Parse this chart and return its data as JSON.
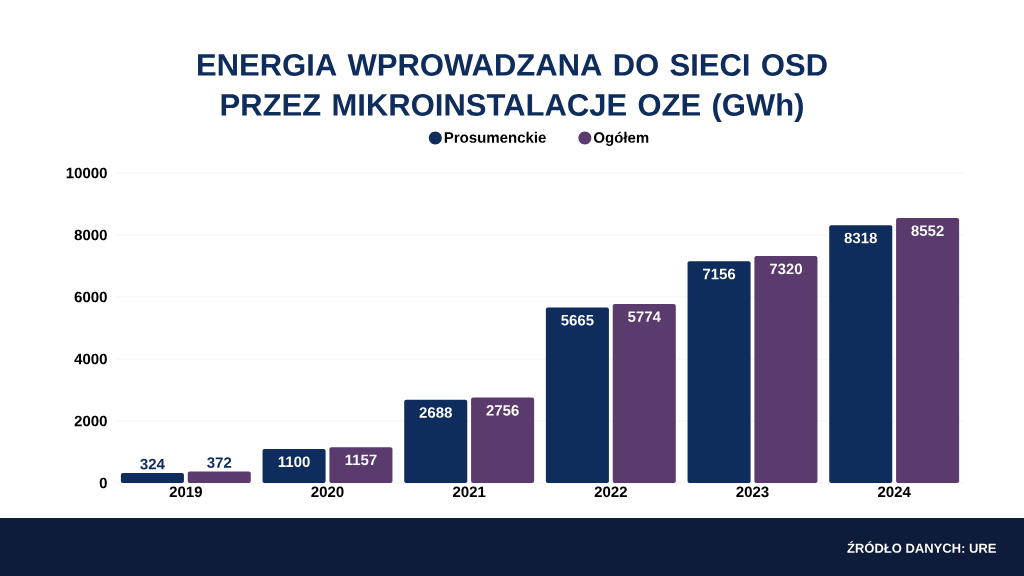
{
  "chart_data": {
    "type": "bar",
    "title": "ENERGIA WPROWADZANA DO SIECI OSD PRZEZ MIKROINSTALACJE OZE (GWh)",
    "categories": [
      "2019",
      "2020",
      "2021",
      "2022",
      "2023",
      "2024"
    ],
    "series": [
      {
        "name": "Prosumenckie",
        "color": "#0f2d5c",
        "values": [
          324,
          1100,
          2688,
          5665,
          7156,
          8318
        ],
        "value_labels": [
          "324",
          "1100",
          "2688",
          "5665",
          "7156",
          "8318"
        ]
      },
      {
        "name": "Ogółem",
        "color": "#5b3a6e",
        "values": [
          372,
          1157,
          2756,
          5774,
          7320,
          8552
        ],
        "value_labels": [
          "372",
          "1157",
          "2756",
          "5774",
          "7320",
          "8552"
        ]
      }
    ],
    "ylim": [
      0,
      10000
    ],
    "yticks": [
      0,
      2000,
      4000,
      6000,
      8000,
      10000
    ],
    "grid": "y",
    "legend": "top",
    "annotations": [
      "ŹRÓDŁO DANYCH: URE"
    ]
  }
}
